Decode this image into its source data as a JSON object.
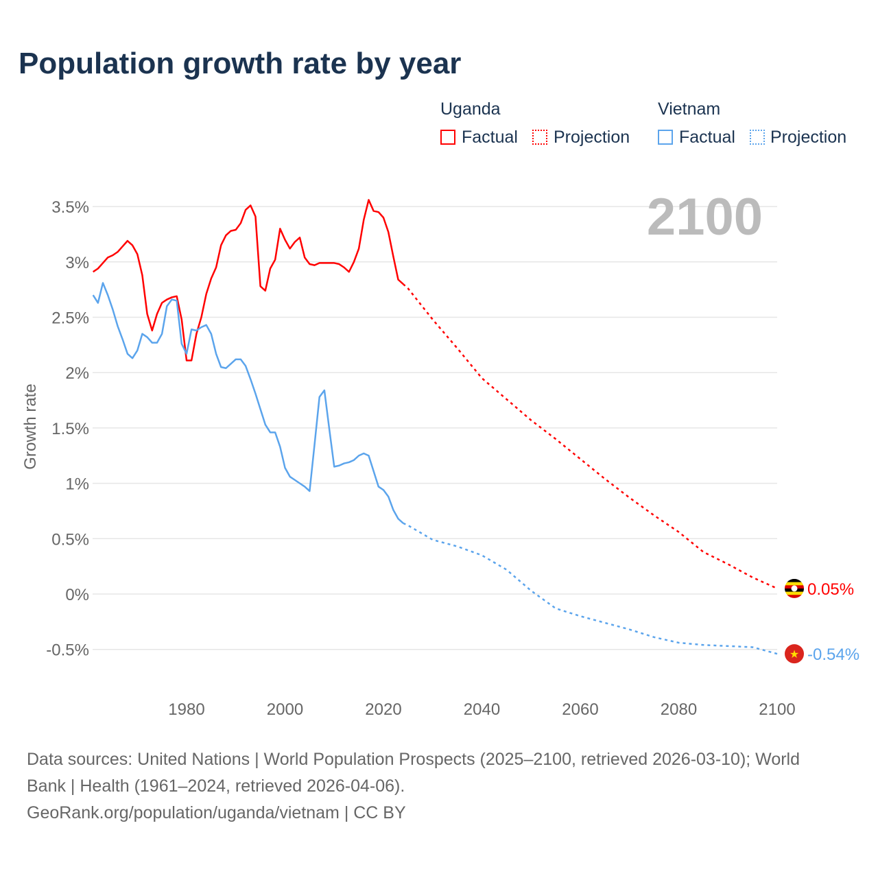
{
  "chart_data": {
    "type": "line",
    "title": "Population growth rate by year",
    "ylabel": "Growth rate",
    "xlabel": "",
    "xlim": [
      1961,
      2100
    ],
    "ylim": [
      -0.7,
      3.7
    ],
    "x_ticks": [
      1980,
      2000,
      2020,
      2040,
      2060,
      2080,
      2100
    ],
    "y_ticks": [
      -0.5,
      0,
      0.5,
      1,
      1.5,
      2,
      2.5,
      3,
      3.5
    ],
    "y_tick_labels": [
      "-0.5%",
      "0%",
      "0.5%",
      "1%",
      "1.5%",
      "2%",
      "2.5%",
      "3%",
      "3.5%"
    ],
    "grid": true,
    "year_watermark": "2100",
    "legend_position": "top-right",
    "legend": {
      "groups": [
        {
          "name": "Uganda",
          "factual": "Factual",
          "projection": "Projection"
        },
        {
          "name": "Vietnam",
          "factual": "Factual",
          "projection": "Projection"
        }
      ]
    },
    "series": [
      {
        "name": "Uganda",
        "color": "#ff0000",
        "end_label": "0.05%",
        "factual": {
          "start_year": 1961,
          "values": [
            2.91,
            2.94,
            2.99,
            3.04,
            3.06,
            3.09,
            3.14,
            3.19,
            3.15,
            3.07,
            2.88,
            2.53,
            2.38,
            2.53,
            2.63,
            2.66,
            2.68,
            2.69,
            2.48,
            2.11,
            2.11,
            2.35,
            2.5,
            2.71,
            2.85,
            2.95,
            3.15,
            3.24,
            3.28,
            3.29,
            3.35,
            3.47,
            3.51,
            3.41,
            2.78,
            2.74,
            2.94,
            3.02,
            3.3,
            3.2,
            3.12,
            3.18,
            3.22,
            3.04,
            2.98,
            2.97,
            2.99,
            2.99,
            2.99,
            2.99,
            2.98,
            2.95,
            2.91,
            3.0,
            3.12,
            3.38,
            3.56,
            3.46,
            3.45,
            3.4,
            3.27,
            3.05,
            2.84,
            2.8
          ]
        },
        "projection": {
          "years": [
            2024,
            2025,
            2030,
            2035,
            2040,
            2045,
            2050,
            2055,
            2060,
            2065,
            2070,
            2075,
            2080,
            2085,
            2090,
            2095,
            2100
          ],
          "values": [
            2.8,
            2.76,
            2.48,
            2.22,
            1.95,
            1.76,
            1.57,
            1.4,
            1.22,
            1.04,
            0.87,
            0.71,
            0.56,
            0.38,
            0.27,
            0.15,
            0.05
          ]
        }
      },
      {
        "name": "Vietnam",
        "color": "#5ba4ec",
        "end_label": "-0.54%",
        "factual": {
          "start_year": 1961,
          "values": [
            2.7,
            2.63,
            2.81,
            2.7,
            2.57,
            2.42,
            2.3,
            2.17,
            2.13,
            2.2,
            2.35,
            2.32,
            2.27,
            2.27,
            2.35,
            2.6,
            2.66,
            2.65,
            2.26,
            2.17,
            2.39,
            2.38,
            2.41,
            2.43,
            2.35,
            2.17,
            2.05,
            2.04,
            2.08,
            2.12,
            2.12,
            2.06,
            1.94,
            1.81,
            1.67,
            1.53,
            1.46,
            1.46,
            1.33,
            1.14,
            1.06,
            1.03,
            1.0,
            0.97,
            0.93,
            1.35,
            1.78,
            1.84,
            1.49,
            1.15,
            1.16,
            1.18,
            1.19,
            1.21,
            1.25,
            1.27,
            1.25,
            1.11,
            0.97,
            0.94,
            0.88,
            0.76,
            0.68,
            0.64
          ]
        },
        "projection": {
          "years": [
            2024,
            2025,
            2030,
            2035,
            2040,
            2045,
            2050,
            2055,
            2060,
            2065,
            2070,
            2075,
            2080,
            2085,
            2090,
            2095,
            2100
          ],
          "values": [
            0.64,
            0.62,
            0.49,
            0.43,
            0.35,
            0.22,
            0.03,
            -0.13,
            -0.2,
            -0.26,
            -0.32,
            -0.39,
            -0.44,
            -0.46,
            -0.47,
            -0.48,
            -0.54
          ]
        }
      }
    ]
  },
  "footer": {
    "source_line1": "Data sources: United Nations | World Population Prospects (2025–2100, retrieved 2026-03-10); World",
    "source_line2": "Bank | Health (1961–2024, retrieved 2026-04-06).",
    "attribution": "GeoRank.org/population/uganda/vietnam | CC BY"
  }
}
